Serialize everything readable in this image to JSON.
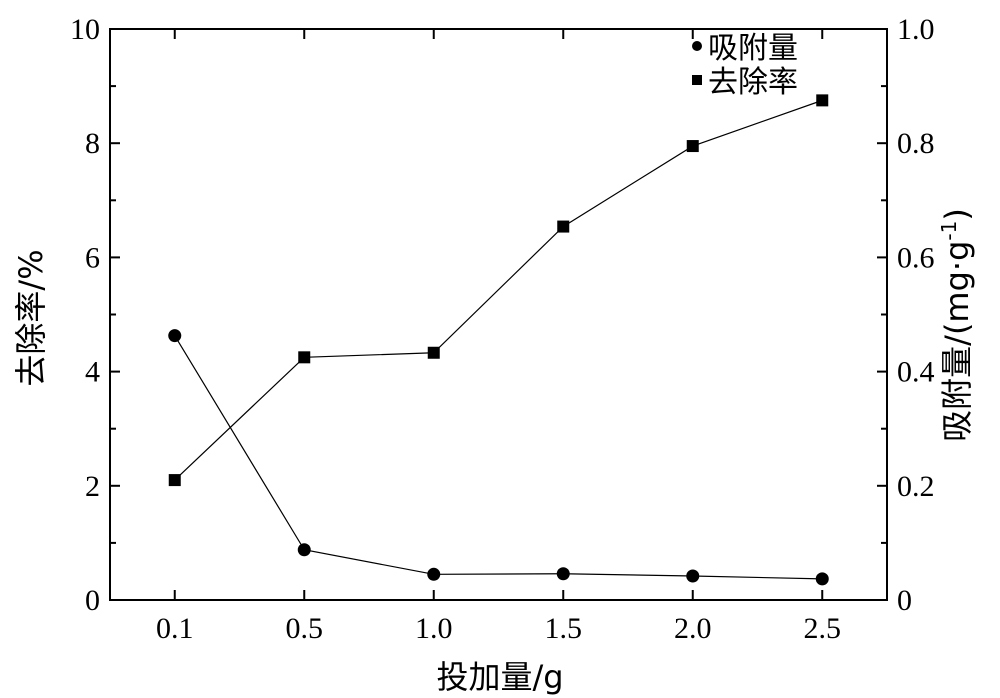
{
  "chart_data": {
    "type": "line",
    "categories": [
      "0.1",
      "0.5",
      "1.0",
      "1.5",
      "2.0",
      "2.5"
    ],
    "xlabel": "投加量/g",
    "ylabel_left": "去除率/%",
    "ylabel_right": "吸附量/(mg·g-1)",
    "ylim_left": [
      0,
      10
    ],
    "ylim_right": [
      0,
      1.0
    ],
    "yticks_left": [
      "0",
      "2",
      "4",
      "6",
      "8",
      "10"
    ],
    "yticks_right": [
      "0",
      "0.2",
      "0.4",
      "0.6",
      "0.8",
      "1.0"
    ],
    "grid": false,
    "legend_position": "top-right",
    "series": [
      {
        "name": "吸附量",
        "marker": "circle",
        "axis": "right",
        "values": [
          0.463,
          0.088,
          0.045,
          0.046,
          0.042,
          0.037
        ]
      },
      {
        "name": "去除率",
        "marker": "square",
        "axis": "left",
        "values": [
          2.1,
          4.25,
          4.33,
          6.54,
          7.95,
          8.75
        ]
      }
    ]
  },
  "text": {
    "xlabel": "投加量/g",
    "ylabel_left": "去除率/%",
    "ylabel_right_main": "吸附量/(mg·g",
    "ylabel_right_sup": "-1",
    "ylabel_right_end": ")"
  }
}
